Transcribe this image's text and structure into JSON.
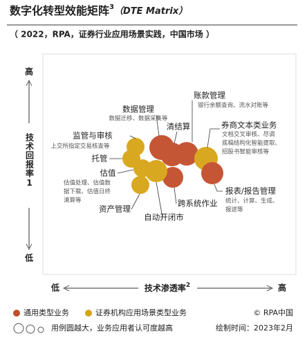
{
  "header": {
    "title": "数字化转型效能矩阵",
    "title_sup": "3",
    "title_en": "（DTE Matrix）",
    "subtitle": "（ 2022，RPA，证券行业应用场景实践，中国市场 ）"
  },
  "y_axis": {
    "high": "高",
    "label": "技术回报率",
    "sup": "1",
    "low": "低"
  },
  "x_axis": {
    "low": "低",
    "label": "技术渗透率",
    "sup": "2",
    "high": "高"
  },
  "nodes": [
    {
      "label": "账款管理",
      "desc": [
        "银行余额查询、流水对账等"
      ]
    },
    {
      "label": "数据管理",
      "desc": [
        "数据迁移、数据采集等"
      ]
    },
    {
      "label": "清结算",
      "desc": []
    },
    {
      "label": "监管与审核",
      "desc": [
        "上交所指定交易核查等"
      ]
    },
    {
      "label": "券商文本类业务",
      "desc": [
        "文档交叉审核、尽调",
        "底稿结构化智能提取、",
        "招股书智能审核等"
      ]
    },
    {
      "label": "托管",
      "desc": []
    },
    {
      "label": "估值",
      "desc": [
        "估值处理、估值数",
        "据下载、估值日终",
        "清算等"
      ]
    },
    {
      "label": "报表/报告管理",
      "desc": [
        "统计、计算、生成、",
        "报送等"
      ]
    },
    {
      "label": "资产管理",
      "desc": []
    },
    {
      "label": "跨系统作业",
      "desc": []
    },
    {
      "label": "自动开闭市",
      "desc": []
    }
  ],
  "legend": {
    "general": "通用类型业务",
    "specific": "证券机构应用场景类型业务",
    "size_note": "用例圆越大，业务应用者认可度越高"
  },
  "footer": {
    "copyright": "© RPA中国",
    "date": "绘制时间：2023年2月"
  }
}
